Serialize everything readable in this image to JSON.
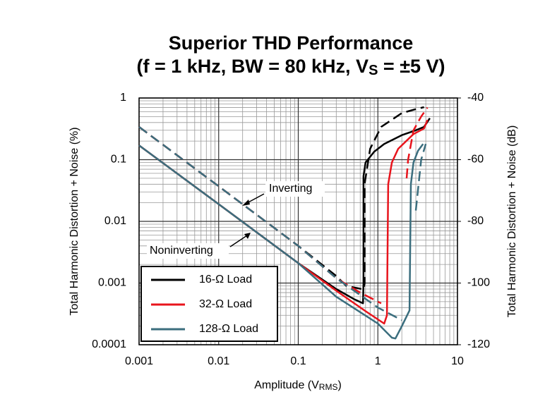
{
  "chart_data": {
    "type": "line",
    "title": [
      "Superior THD Performance",
      [
        "(f = 1 kHz, BW = 80 kHz, V",
        "S",
        " = ±5 V)"
      ]
    ],
    "x_label": [
      "Amplitude (V",
      "RMS",
      ")"
    ],
    "y_label": "Total Harmonic Distortion + Noise (%)",
    "y2_label": "Total Harmonic Distortion + Noise (dB)",
    "xscale": "log",
    "yscale": "log",
    "grid": true,
    "legend": "lower left",
    "xlim": [
      0.001,
      10
    ],
    "xticks": [
      0.001,
      0.01,
      0.1,
      1,
      10
    ],
    "ylim": [
      0.0001,
      1
    ],
    "yticks": [
      0.0001,
      0.001,
      0.01,
      0.1,
      1
    ],
    "y2lim": [
      -120,
      -40
    ],
    "y2ticks": [
      -120,
      -100,
      -80,
      -60,
      -40
    ],
    "annotations": [
      "Inverting",
      "Noninverting"
    ],
    "series": [
      {
        "name": "16-Ω Load",
        "color": "#000000",
        "dash": false,
        "x": [
          0.001,
          0.01,
          0.1,
          0.3,
          0.5,
          0.65,
          0.66,
          0.66,
          0.7,
          0.9,
          1.2,
          2,
          3,
          3.8,
          4.5
        ],
        "values": [
          0.17,
          0.019,
          0.0021,
          0.0008,
          0.00055,
          0.00047,
          0.001,
          0.054,
          0.09,
          0.135,
          0.18,
          0.25,
          0.3,
          0.34,
          0.47
        ]
      },
      {
        "color": "#000000",
        "dash": true,
        "x": [
          0.001,
          0.01,
          0.1,
          0.3,
          0.4,
          0.66,
          0.68,
          0.68,
          0.8,
          1.1,
          2,
          3,
          3.8
        ],
        "values": [
          0.34,
          0.037,
          0.004,
          0.0013,
          0.0009,
          0.00079,
          0.001,
          0.04,
          0.15,
          0.34,
          0.57,
          0.66,
          0.71
        ]
      },
      {
        "name": "32-Ω Load",
        "color": "#e8141c",
        "dash": false,
        "x": [
          0.001,
          0.01,
          0.1,
          0.3,
          0.7,
          1.2,
          1.3,
          1.35,
          1.5,
          1.8,
          2.8,
          3.8,
          4.2
        ],
        "values": [
          0.17,
          0.019,
          0.0021,
          0.00075,
          0.00035,
          0.00022,
          0.0003,
          0.04,
          0.09,
          0.15,
          0.26,
          0.32,
          0.44
        ]
      },
      {
        "color": "#e8141c",
        "dash": true,
        "x": [
          0.001,
          0.01,
          0.1,
          0.3,
          0.6,
          1.1,
          null,
          2.3,
          2.4,
          2.8,
          3.5,
          4.2
        ],
        "values": [
          0.34,
          0.037,
          0.004,
          0.0012,
          0.0007,
          0.00047,
          null,
          0.05,
          0.1,
          0.3,
          0.5,
          0.7
        ]
      },
      {
        "name": "128-Ω Load",
        "color": "#3b6e7e",
        "dash": false,
        "x": [
          0.001,
          0.01,
          0.1,
          0.3,
          1,
          1.5,
          1.66,
          2,
          2.5,
          2.6,
          2.8,
          3.2,
          3.7
        ],
        "values": [
          0.17,
          0.019,
          0.0021,
          0.0006,
          0.00022,
          0.00013,
          0.000126,
          0.0002,
          0.00036,
          0.04,
          0.09,
          0.14,
          0.18
        ]
      },
      {
        "color": "#3b6e7e",
        "dash": true,
        "x": [
          0.001,
          0.01,
          0.1,
          0.3,
          1,
          2,
          null,
          3,
          3.5,
          4
        ],
        "values": [
          0.34,
          0.037,
          0.004,
          0.0012,
          0.0004,
          0.00025,
          null,
          0.015,
          0.1,
          0.18
        ]
      }
    ]
  }
}
